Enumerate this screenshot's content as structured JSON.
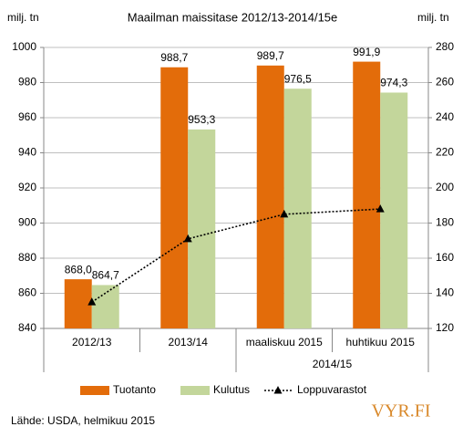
{
  "chart_data": {
    "type": "bar",
    "title": "Maailman maissitase 2012/13-2014/15e",
    "y_unit": "milj. tn",
    "y2_unit": "milj. tn",
    "categories": [
      "2012/13",
      "2013/14",
      "maaliskuu 2015",
      "huhtikuu 2015"
    ],
    "x_group_label": "2014/15",
    "series": [
      {
        "name": "Tuotanto",
        "color": "#e36c0a",
        "type": "bar",
        "values": [
          868.0,
          988.7,
          989.7,
          991.9
        ],
        "value_labels": [
          "868,0",
          "988,7",
          "989,7",
          "991,9"
        ]
      },
      {
        "name": "Kulutus",
        "color": "#c3d69b",
        "type": "bar",
        "values": [
          864.7,
          953.3,
          976.5,
          974.3
        ],
        "value_labels": [
          "864,7",
          "953,3",
          "976,5",
          "974,3"
        ]
      },
      {
        "name": "Loppuvarastot",
        "color": "#000000",
        "type": "line",
        "axis": "y2",
        "values": [
          135,
          171,
          185,
          188
        ]
      }
    ],
    "ylim": [
      840,
      1000
    ],
    "yticks": [
      840,
      860,
      880,
      900,
      920,
      940,
      960,
      980,
      1000
    ],
    "y2lim": [
      120,
      280
    ],
    "y2ticks": [
      120,
      140,
      160,
      180,
      200,
      220,
      240,
      260,
      280
    ],
    "grid": true,
    "legend": "bottom",
    "source": "Lähde: USDA, helmikuu 2015",
    "logo": "VYR.FI"
  }
}
